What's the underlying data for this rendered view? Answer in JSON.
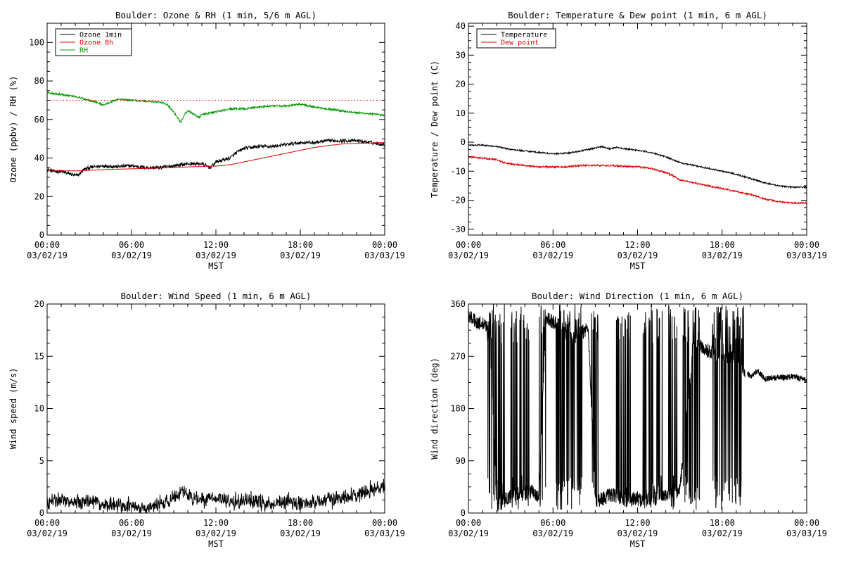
{
  "colors": {
    "black": "#000000",
    "red": "#e00000",
    "green": "#009900",
    "background": "#ffffff"
  },
  "time_ticks": [
    {
      "time": "00:00",
      "date": "03/02/19"
    },
    {
      "time": "06:00",
      "date": "03/02/19"
    },
    {
      "time": "12:00",
      "date": "03/02/19"
    },
    {
      "time": "18:00",
      "date": "03/02/19"
    },
    {
      "time": "00:00",
      "date": "03/03/19"
    }
  ],
  "chart_data": [
    {
      "id": "ozone-rh",
      "type": "line",
      "title": "Boulder: Ozone & RH (1 min, 5/6 m AGL)",
      "ylabel": "Ozone (ppbv) / RH (%)",
      "xlabel": "MST",
      "x_unit": "hours since 00:00 03/02/19",
      "xlim": [
        0,
        24
      ],
      "ylim": [
        0,
        110
      ],
      "yticks": [
        0,
        20,
        40,
        60,
        80,
        100
      ],
      "legend_position": "top-left",
      "reference_line": {
        "y": 70,
        "color": "#e00000",
        "style": "dotted"
      },
      "series": [
        {
          "name": "Ozone 1min",
          "color": "#000000",
          "noise": 0.9,
          "points": [
            [
              0,
              34
            ],
            [
              0.5,
              33
            ],
            [
              1,
              33
            ],
            [
              1.5,
              32
            ],
            [
              2,
              31
            ],
            [
              2.2,
              31
            ],
            [
              2.6,
              34
            ],
            [
              3,
              35
            ],
            [
              4,
              36
            ],
            [
              5,
              35.5
            ],
            [
              6,
              36
            ],
            [
              7,
              35
            ],
            [
              8,
              35
            ],
            [
              9,
              36
            ],
            [
              10,
              37
            ],
            [
              11,
              37
            ],
            [
              11.6,
              35
            ],
            [
              12,
              38
            ],
            [
              13,
              40
            ],
            [
              13.5,
              43
            ],
            [
              14,
              45
            ],
            [
              15,
              46
            ],
            [
              16,
              46
            ],
            [
              17,
              47
            ],
            [
              18,
              48
            ],
            [
              19,
              48
            ],
            [
              20,
              49
            ],
            [
              21,
              49
            ],
            [
              22,
              49
            ],
            [
              23,
              48
            ],
            [
              24,
              47
            ]
          ]
        },
        {
          "name": "Ozone 8h",
          "color": "#e00000",
          "noise": 0,
          "points": [
            [
              0,
              34
            ],
            [
              0.5,
              33.6
            ],
            [
              1,
              33.4
            ],
            [
              2,
              33.3
            ],
            [
              3,
              33.6
            ],
            [
              4,
              34
            ],
            [
              5,
              34.2
            ],
            [
              6,
              34.4
            ],
            [
              7,
              34.6
            ],
            [
              8,
              34.8
            ],
            [
              9,
              35
            ],
            [
              10,
              35.4
            ],
            [
              11,
              35.6
            ],
            [
              12,
              35.8
            ],
            [
              13,
              36.5
            ],
            [
              14,
              38
            ],
            [
              15,
              39.5
            ],
            [
              16,
              41
            ],
            [
              17,
              42.5
            ],
            [
              18,
              44
            ],
            [
              19,
              45.5
            ],
            [
              20,
              46.5
            ],
            [
              21,
              47.3
            ],
            [
              22,
              47.6
            ],
            [
              23,
              47.8
            ],
            [
              24,
              48
            ]
          ]
        },
        {
          "name": "RH",
          "color": "#009900",
          "noise": 0.5,
          "points": [
            [
              0,
              74
            ],
            [
              1,
              73
            ],
            [
              2,
              72
            ],
            [
              3,
              70
            ],
            [
              3.5,
              69
            ],
            [
              4,
              67.5
            ],
            [
              4.5,
              69
            ],
            [
              5,
              70.5
            ],
            [
              6,
              70
            ],
            [
              7,
              69.5
            ],
            [
              8,
              69
            ],
            [
              8.5,
              68
            ],
            [
              9,
              64
            ],
            [
              9.5,
              58.5
            ],
            [
              9.8,
              63
            ],
            [
              10,
              64.5
            ],
            [
              10.4,
              63
            ],
            [
              10.8,
              61
            ],
            [
              11,
              62.5
            ],
            [
              12,
              64
            ],
            [
              13,
              65.5
            ],
            [
              14,
              65.5
            ],
            [
              15,
              66.5
            ],
            [
              16,
              67
            ],
            [
              17,
              67
            ],
            [
              18,
              68
            ],
            [
              19,
              66.5
            ],
            [
              20,
              65.5
            ],
            [
              21,
              64.5
            ],
            [
              22,
              63.5
            ],
            [
              23,
              63
            ],
            [
              24,
              62
            ]
          ]
        }
      ]
    },
    {
      "id": "temp-dew",
      "type": "line",
      "title": "Boulder: Temperature & Dew point (1 min, 6 m AGL)",
      "ylabel": "Temperature / Dew point (C)",
      "xlabel": "MST",
      "x_unit": "hours since 00:00 03/02/19",
      "xlim": [
        0,
        24
      ],
      "ylim": [
        -32,
        41
      ],
      "yticks": [
        -30,
        -20,
        -10,
        0,
        10,
        20,
        30,
        40
      ],
      "legend_position": "top-left",
      "series": [
        {
          "name": "Temperature",
          "color": "#000000",
          "noise": 0.25,
          "points": [
            [
              0,
              -1
            ],
            [
              1,
              -1
            ],
            [
              2,
              -1.5
            ],
            [
              3,
              -2.5
            ],
            [
              4,
              -3
            ],
            [
              5,
              -3.5
            ],
            [
              6,
              -4
            ],
            [
              7,
              -3.8
            ],
            [
              8,
              -3
            ],
            [
              9,
              -2
            ],
            [
              9.5,
              -1.5
            ],
            [
              10,
              -2.3
            ],
            [
              10.5,
              -1.8
            ],
            [
              11,
              -2.2
            ],
            [
              12,
              -2.8
            ],
            [
              13,
              -3.6
            ],
            [
              14,
              -5
            ],
            [
              15,
              -7
            ],
            [
              16,
              -8
            ],
            [
              17,
              -9
            ],
            [
              18,
              -10
            ],
            [
              19,
              -11
            ],
            [
              20,
              -12.5
            ],
            [
              21,
              -14
            ],
            [
              22,
              -15
            ],
            [
              23,
              -15.5
            ],
            [
              24,
              -15.5
            ]
          ]
        },
        {
          "name": "Dew point",
          "color": "#e00000",
          "noise": 0.3,
          "points": [
            [
              0,
              -5
            ],
            [
              1,
              -5.5
            ],
            [
              2,
              -6
            ],
            [
              2.5,
              -7
            ],
            [
              3,
              -7.5
            ],
            [
              4,
              -8
            ],
            [
              5,
              -8.5
            ],
            [
              6,
              -8.5
            ],
            [
              7,
              -8.5
            ],
            [
              8,
              -8
            ],
            [
              9,
              -8
            ],
            [
              10,
              -8
            ],
            [
              11,
              -8.3
            ],
            [
              12,
              -8.5
            ],
            [
              13,
              -9
            ],
            [
              14,
              -10.5
            ],
            [
              14.5,
              -11.5
            ],
            [
              15,
              -13
            ],
            [
              16,
              -14
            ],
            [
              17,
              -15
            ],
            [
              18,
              -16
            ],
            [
              19,
              -17
            ],
            [
              20,
              -18
            ],
            [
              21,
              -19.5
            ],
            [
              22,
              -20.5
            ],
            [
              23,
              -21
            ],
            [
              24,
              -21
            ]
          ]
        }
      ]
    },
    {
      "id": "wind-speed",
      "type": "line",
      "title": "Boulder: Wind Speed (1 min, 6 m AGL)",
      "ylabel": "Wind speed (m/s)",
      "xlabel": "MST",
      "x_unit": "hours since 00:00 03/02/19",
      "xlim": [
        0,
        24
      ],
      "ylim": [
        0,
        20
      ],
      "yticks": [
        0,
        5,
        10,
        15,
        20
      ],
      "series": [
        {
          "name": "Wind speed",
          "color": "#000000",
          "noise": 0.45,
          "points": [
            [
              0,
              1
            ],
            [
              1,
              1.1
            ],
            [
              2,
              0.8
            ],
            [
              3,
              1
            ],
            [
              4,
              0.7
            ],
            [
              5,
              0.5
            ],
            [
              6,
              0.5
            ],
            [
              6.5,
              0.2
            ],
            [
              7,
              0.2
            ],
            [
              8,
              0.6
            ],
            [
              9,
              1.3
            ],
            [
              9.5,
              2
            ],
            [
              10,
              1.5
            ],
            [
              11,
              1
            ],
            [
              12,
              1.3
            ],
            [
              13,
              0.8
            ],
            [
              14,
              1.1
            ],
            [
              15,
              0.9
            ],
            [
              16,
              0.6
            ],
            [
              17,
              1
            ],
            [
              18,
              0.7
            ],
            [
              19,
              0.9
            ],
            [
              20,
              1
            ],
            [
              21,
              1.4
            ],
            [
              22,
              1.6
            ],
            [
              23,
              2
            ],
            [
              24,
              2.5
            ]
          ]
        }
      ]
    },
    {
      "id": "wind-direction",
      "type": "line",
      "title": "Boulder: Wind Direction (1 min, 6 m AGL)",
      "ylabel": "Wind direction (deg)",
      "xlabel": "MST",
      "x_unit": "hours since 00:00 03/02/19",
      "xlim": [
        0,
        24
      ],
      "ylim": [
        0,
        360
      ],
      "yticks": [
        0,
        90,
        180,
        270,
        360
      ],
      "end_x": 24,
      "gaps": [
        [
          19.65,
          19.8
        ]
      ],
      "series": [
        {
          "name": "Wind direction",
          "color": "#000000",
          "noise": 5,
          "points": [
            [
              0,
              340
            ],
            [
              0.5,
              330
            ],
            [
              1,
              325
            ],
            [
              1.5,
              320
            ],
            [
              2,
              10
            ],
            [
              2.5,
              20
            ],
            [
              3,
              30
            ],
            [
              3.5,
              35
            ],
            [
              4,
              30
            ],
            [
              4.5,
              40
            ],
            [
              5,
              25
            ],
            [
              5.5,
              335
            ],
            [
              6,
              330
            ],
            [
              6.5,
              325
            ],
            [
              7,
              320
            ],
            [
              7.5,
              300
            ],
            [
              8,
              310
            ],
            [
              8.5,
              320
            ],
            [
              9,
              20
            ],
            [
              9.5,
              25
            ],
            [
              10,
              30
            ],
            [
              10.5,
              30
            ],
            [
              11,
              20
            ],
            [
              12,
              25
            ],
            [
              12.5,
              20
            ],
            [
              13,
              25
            ],
            [
              14,
              30
            ],
            [
              15,
              40
            ],
            [
              16,
              295
            ],
            [
              17,
              280
            ],
            [
              18,
              265
            ],
            [
              19,
              270
            ],
            [
              19.5,
              250
            ],
            [
              20,
              235
            ],
            [
              20.5,
              245
            ],
            [
              21,
              232
            ],
            [
              22,
              233
            ],
            [
              23,
              235
            ],
            [
              24,
              230
            ]
          ]
        }
      ],
      "flip_intervals": [
        [
          1.3,
          2.6
        ],
        [
          3.0,
          4.4
        ],
        [
          5.0,
          5.5
        ],
        [
          6.2,
          8.1
        ],
        [
          8.7,
          9.2
        ],
        [
          10.5,
          11.5
        ],
        [
          12.3,
          13.8
        ],
        [
          14.2,
          14.8
        ],
        [
          15.2,
          16.4
        ],
        [
          17.3,
          19.6
        ]
      ]
    }
  ]
}
